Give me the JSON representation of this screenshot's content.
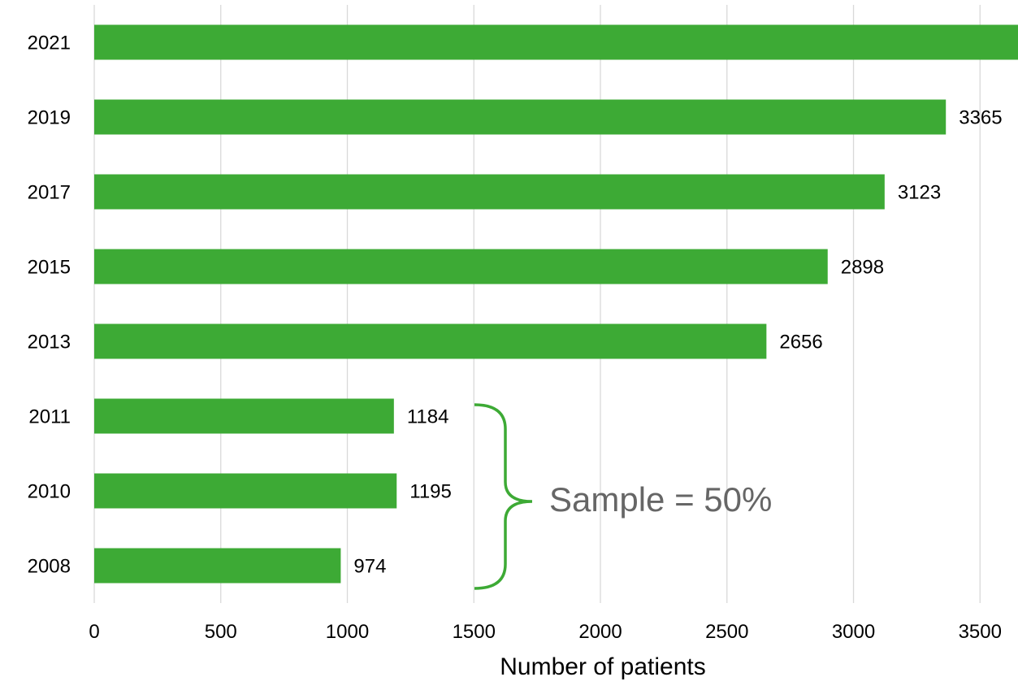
{
  "chart_data": {
    "type": "bar",
    "orientation": "horizontal",
    "categories": [
      "2021",
      "2019",
      "2017",
      "2015",
      "2013",
      "2011",
      "2010",
      "2008"
    ],
    "values": [
      3650,
      3365,
      3123,
      2898,
      2656,
      1184,
      1195,
      974
    ],
    "data_labels": [
      "",
      "3365",
      "3123",
      "2898",
      "2656",
      "1184",
      "1195",
      "974"
    ],
    "xlabel": "Number of patients",
    "ylabel": "",
    "xlim": [
      0,
      3650
    ],
    "xticks": [
      0,
      500,
      1000,
      1500,
      2000,
      2500,
      3000,
      3500
    ],
    "grid": "vertical",
    "legend": "none",
    "bar_color": "#3daa35",
    "annotation": {
      "text": "Sample = 50%",
      "categories": [
        "2011",
        "2010",
        "2008"
      ],
      "brace_color": "#3daa35",
      "text_color": "#666666"
    }
  }
}
